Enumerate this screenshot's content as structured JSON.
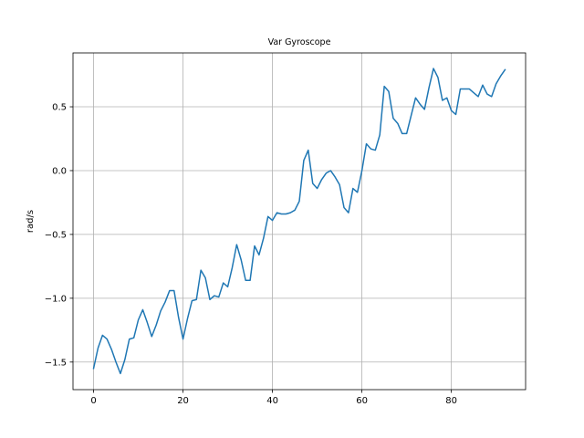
{
  "chart_data": {
    "type": "line",
    "title": "Var Gyroscope",
    "xlabel": "",
    "ylabel": "rad/s",
    "xlim": [
      -4.6,
      96.6
    ],
    "ylim": [
      -1.716,
      0.922
    ],
    "xticks": [
      0,
      20,
      40,
      60,
      80
    ],
    "xtick_labels": [
      "0",
      "20",
      "40",
      "60",
      "80"
    ],
    "yticks": [
      -1.5,
      -1.0,
      -0.5,
      0.0,
      0.5
    ],
    "ytick_labels": [
      "−1.5",
      "−1.0",
      "−0.5",
      "0.0",
      "0.5"
    ],
    "grid": true,
    "legend": "none",
    "series": [
      {
        "color": "#1f77b4",
        "x": [
          0,
          1,
          2,
          3,
          4,
          5,
          6,
          7,
          8,
          9,
          10,
          11,
          12,
          13,
          14,
          15,
          16,
          17,
          18,
          19,
          20,
          21,
          22,
          23,
          24,
          25,
          26,
          27,
          28,
          29,
          30,
          31,
          32,
          33,
          34,
          35,
          36,
          37,
          38,
          39,
          40,
          41,
          42,
          43,
          44,
          45,
          46,
          47,
          48,
          49,
          50,
          51,
          52,
          53,
          54,
          55,
          56,
          57,
          58,
          59,
          60,
          61,
          62,
          63,
          64,
          65,
          66,
          67,
          68,
          69,
          70,
          71,
          72,
          73,
          74,
          75,
          76,
          77,
          78,
          79,
          80,
          81,
          82,
          83,
          84,
          85,
          86,
          87,
          88,
          89,
          90,
          91,
          92
        ],
        "y": [
          -1.55,
          -1.39,
          -1.29,
          -1.32,
          -1.4,
          -1.5,
          -1.59,
          -1.48,
          -1.32,
          -1.31,
          -1.17,
          -1.09,
          -1.19,
          -1.3,
          -1.21,
          -1.1,
          -1.03,
          -0.94,
          -0.94,
          -1.15,
          -1.32,
          -1.16,
          -1.02,
          -1.01,
          -0.78,
          -0.84,
          -1.01,
          -0.98,
          -0.99,
          -0.88,
          -0.91,
          -0.76,
          -0.58,
          -0.7,
          -0.86,
          -0.86,
          -0.59,
          -0.66,
          -0.53,
          -0.36,
          -0.39,
          -0.33,
          -0.34,
          -0.34,
          -0.33,
          -0.31,
          -0.24,
          0.08,
          0.16,
          -0.1,
          -0.14,
          -0.07,
          -0.02,
          0.0,
          -0.05,
          -0.11,
          -0.29,
          -0.33,
          -0.14,
          -0.17,
          0.0,
          0.21,
          0.17,
          0.16,
          0.28,
          0.66,
          0.62,
          0.41,
          0.37,
          0.29,
          0.29,
          0.43,
          0.57,
          0.52,
          0.48,
          0.65,
          0.8,
          0.73,
          0.55,
          0.57,
          0.47,
          0.44,
          0.64,
          0.64,
          0.64,
          0.61,
          0.58,
          0.67,
          0.6,
          0.58,
          0.68,
          0.74,
          0.79
        ]
      }
    ]
  }
}
